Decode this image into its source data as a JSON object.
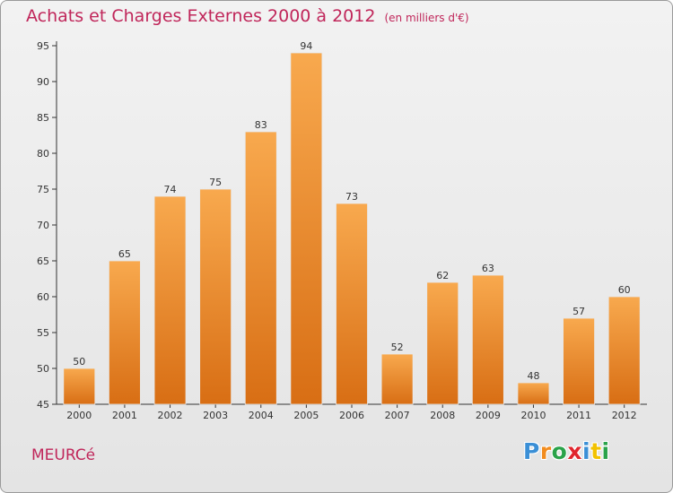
{
  "chart_data": {
    "type": "bar",
    "title": "Achats et Charges Externes 2000 à 2012",
    "subtitle": "(en milliers d'€)",
    "categories": [
      "2000",
      "2001",
      "2002",
      "2003",
      "2004",
      "2005",
      "2006",
      "2007",
      "2008",
      "2009",
      "2010",
      "2011",
      "2012"
    ],
    "values": [
      50,
      65,
      74,
      75,
      83,
      94,
      73,
      52,
      62,
      63,
      48,
      57,
      60
    ],
    "ylim": [
      45,
      95
    ],
    "yticks": [
      45,
      50,
      55,
      60,
      65,
      70,
      75,
      80,
      85,
      90,
      95
    ],
    "grid": false,
    "xlabel": "",
    "ylabel": "",
    "bar_color": "#f0963a"
  },
  "footer": {
    "commune": "MEURCé",
    "logo_letters": [
      "P",
      "r",
      "o",
      "x",
      "i",
      "t",
      "i"
    ],
    "logo_colors": [
      "#3a8fd6",
      "#f28c1e",
      "#2aa34a",
      "#e0262e",
      "#3a8fd6",
      "#f2c200",
      "#2aa34a"
    ]
  }
}
